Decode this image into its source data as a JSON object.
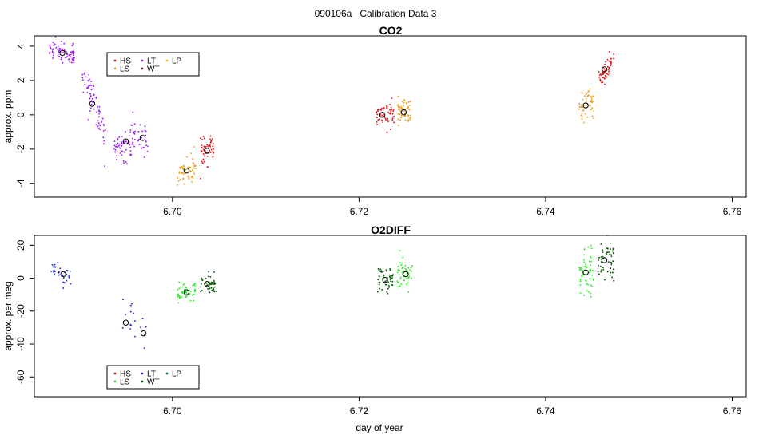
{
  "page_title": "090106a   Calibration Data 3",
  "colors": {
    "HS": "#e31a1c",
    "LS": "#f0a020",
    "LT": "#a020f0",
    "WT": "#7a3030",
    "LP": "#e8c020",
    "o2_HS": "#e31a1c",
    "o2_LS": "#22ee22",
    "o2_LT": "#1f2fd8",
    "o2_WT": "#0a5a0a",
    "o2_LP": "#107070"
  },
  "legend_labels": [
    "HS",
    "LS",
    "LT",
    "WT",
    "LP"
  ],
  "chart_data": [
    {
      "type": "scatter",
      "title": "CO2",
      "xlabel": "",
      "ylabel": "approx. ppm",
      "xlim": [
        6.6852,
        6.7615
      ],
      "ylim": [
        -4.8,
        4.6
      ],
      "xticks": [
        6.7,
        6.72,
        6.74,
        6.76
      ],
      "xtick_labels": [
        "6.70",
        "6.72",
        "6.74",
        "6.76"
      ],
      "yticks": [
        -4,
        -2,
        0,
        2,
        4
      ],
      "ytick_labels": [
        "-4",
        "-2",
        "0",
        "2",
        "4"
      ],
      "legend_position": "top-left",
      "clusters": [
        {
          "series": "LT",
          "x_start": 6.6868,
          "x_end": 6.6895,
          "mean_x": 6.6882,
          "mean_y": 3.6,
          "sd": 0.38,
          "n": 75,
          "trend": -0.4
        },
        {
          "series": "LT",
          "x_start": 6.6903,
          "x_end": 6.6928,
          "mean_x": 6.6914,
          "mean_y": 0.65,
          "sd": 0.55,
          "n": 70,
          "trend": -3.6
        },
        {
          "series": "LT",
          "x_start": 6.6936,
          "x_end": 6.696,
          "mean_x": 6.695,
          "mean_y": -1.55,
          "sd": 0.55,
          "n": 70,
          "trend": 0.6
        },
        {
          "series": "LT",
          "x_start": 6.6963,
          "x_end": 6.6974,
          "mean_x": 6.6968,
          "mean_y": -1.35,
          "sd": 0.45,
          "n": 22,
          "trend": 0.0
        },
        {
          "series": "LS",
          "x_start": 6.7005,
          "x_end": 6.7025,
          "mean_x": 6.7015,
          "mean_y": -3.25,
          "sd": 0.42,
          "n": 55,
          "trend": 0.4
        },
        {
          "series": "HS",
          "x_start": 6.703,
          "x_end": 6.7045,
          "mean_x": 6.7037,
          "mean_y": -2.1,
          "sd": 0.38,
          "n": 55,
          "trend": 0.6
        },
        {
          "series": "HS",
          "x_start": 6.7218,
          "x_end": 6.7238,
          "mean_x": 6.7225,
          "mean_y": 0.0,
          "sd": 0.35,
          "n": 55,
          "trend": 0.0
        },
        {
          "series": "LS",
          "x_start": 6.7241,
          "x_end": 6.7256,
          "mean_x": 6.7248,
          "mean_y": 0.15,
          "sd": 0.42,
          "n": 55,
          "trend": 0.0
        },
        {
          "series": "LS",
          "x_start": 6.7436,
          "x_end": 6.7452,
          "mean_x": 6.7443,
          "mean_y": 0.55,
          "sd": 0.38,
          "n": 55,
          "trend": 0.5
        },
        {
          "series": "HS",
          "x_start": 6.7457,
          "x_end": 6.7473,
          "mean_x": 6.7463,
          "mean_y": 2.65,
          "sd": 0.4,
          "n": 55,
          "trend": 1.3
        }
      ]
    },
    {
      "type": "scatter",
      "title": "O2DIFF",
      "xlabel": "day of year",
      "ylabel": "approx. per meg",
      "xlim": [
        6.6852,
        6.7615
      ],
      "ylim": [
        -72,
        26
      ],
      "xticks": [
        6.7,
        6.72,
        6.74,
        6.76
      ],
      "xtick_labels": [
        "6.70",
        "6.72",
        "6.74",
        "6.76"
      ],
      "yticks": [
        -60,
        -40,
        -20,
        0,
        20
      ],
      "ytick_labels": [
        "-60",
        "-40",
        "-20",
        "0",
        "20"
      ],
      "legend_position": "bottom-left",
      "clusters": [
        {
          "series": "o2_LT",
          "x_start": 6.687,
          "x_end": 6.6892,
          "mean_x": 6.6883,
          "mean_y": 2.5,
          "sd": 2.8,
          "n": 30,
          "trend": -6.0
        },
        {
          "series": "o2_LT",
          "x_start": 6.6945,
          "x_end": 6.696,
          "mean_x": 6.695,
          "mean_y": -27.0,
          "sd": 9.0,
          "n": 12,
          "trend": 0.0
        },
        {
          "series": "o2_LT",
          "x_start": 6.6965,
          "x_end": 6.6972,
          "mean_x": 6.6969,
          "mean_y": -33.5,
          "sd": 6.0,
          "n": 5,
          "trend": 0.0
        },
        {
          "series": "o2_LS",
          "x_start": 6.7005,
          "x_end": 6.7025,
          "mean_x": 6.7015,
          "mean_y": -8.5,
          "sd": 2.5,
          "n": 50,
          "trend": 4.0
        },
        {
          "series": "o2_WT",
          "x_start": 6.703,
          "x_end": 6.7047,
          "mean_x": 6.7037,
          "mean_y": -3.5,
          "sd": 3.0,
          "n": 45,
          "trend": 0.0
        },
        {
          "series": "o2_WT",
          "x_start": 6.722,
          "x_end": 6.7238,
          "mean_x": 6.7228,
          "mean_y": -1.0,
          "sd": 4.0,
          "n": 50,
          "trend": 0.0
        },
        {
          "series": "o2_LS",
          "x_start": 6.7241,
          "x_end": 6.7257,
          "mean_x": 6.725,
          "mean_y": 2.5,
          "sd": 4.5,
          "n": 50,
          "trend": 0.0
        },
        {
          "series": "o2_LS",
          "x_start": 6.7436,
          "x_end": 6.7452,
          "mean_x": 6.7443,
          "mean_y": 3.5,
          "sd": 7.0,
          "n": 55,
          "trend": 0.0
        },
        {
          "series": "o2_WT",
          "x_start": 6.7455,
          "x_end": 6.7473,
          "mean_x": 6.7463,
          "mean_y": 11.0,
          "sd": 6.0,
          "n": 50,
          "trend": 0.0
        }
      ]
    }
  ]
}
